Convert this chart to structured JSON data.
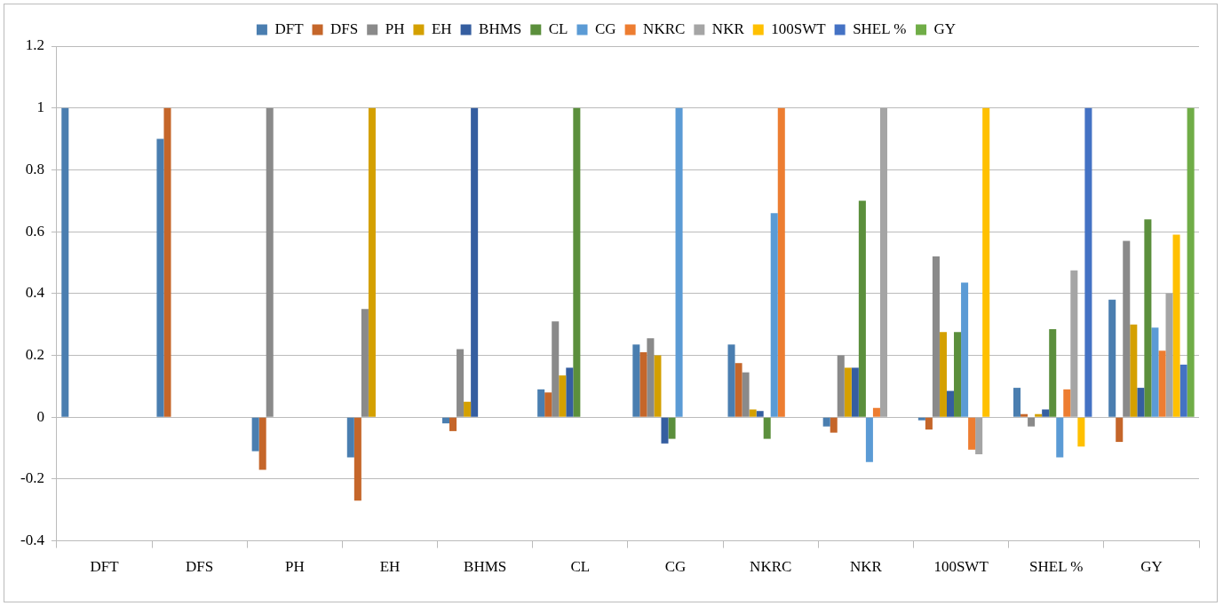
{
  "chart_data": {
    "type": "bar",
    "categories": [
      "DFT",
      "DFS",
      "PH",
      "EH",
      "BHMS",
      "CL",
      "CG",
      "NKRC",
      "NKR",
      "100SWT",
      "SHEL %",
      "GY"
    ],
    "series": [
      {
        "name": "DFT",
        "color": "#4a7eb0",
        "values": [
          1,
          0.9,
          -0.11,
          -0.13,
          -0.02,
          0.09,
          0.235,
          0.235,
          -0.03,
          -0.01,
          0.095,
          0.38
        ]
      },
      {
        "name": "DFS",
        "color": "#c5662a",
        "values": [
          null,
          1,
          -0.17,
          -0.27,
          -0.045,
          0.08,
          0.21,
          0.175,
          -0.05,
          -0.04,
          0.01,
          -0.08
        ]
      },
      {
        "name": "PH",
        "color": "#8a8a8a",
        "values": [
          null,
          null,
          1,
          0.35,
          0.22,
          0.31,
          0.255,
          0.145,
          0.2,
          0.52,
          -0.03,
          0.57
        ]
      },
      {
        "name": "EH",
        "color": "#d4a000",
        "values": [
          null,
          null,
          null,
          1,
          0.05,
          0.135,
          0.2,
          0.025,
          0.16,
          0.275,
          0.01,
          0.3
        ]
      },
      {
        "name": "BHMS",
        "color": "#355ea0",
        "values": [
          null,
          null,
          null,
          null,
          1,
          0.16,
          -0.085,
          0.02,
          0.16,
          0.085,
          0.025,
          0.095
        ]
      },
      {
        "name": "CL",
        "color": "#5b8f3c",
        "values": [
          null,
          null,
          null,
          null,
          null,
          1,
          -0.07,
          -0.07,
          0.7,
          0.275,
          0.285,
          0.64
        ]
      },
      {
        "name": "CG",
        "color": "#5b9bd5",
        "values": [
          null,
          null,
          null,
          null,
          null,
          null,
          1,
          0.66,
          -0.145,
          0.435,
          -0.13,
          0.29
        ]
      },
      {
        "name": "NKRC",
        "color": "#ed7d31",
        "values": [
          null,
          null,
          null,
          null,
          null,
          null,
          null,
          1,
          0.03,
          -0.105,
          0.09,
          0.215
        ]
      },
      {
        "name": "NKR",
        "color": "#a5a5a5",
        "values": [
          null,
          null,
          null,
          null,
          null,
          null,
          null,
          null,
          1,
          -0.12,
          0.475,
          0.4
        ]
      },
      {
        "name": "100SWT",
        "color": "#ffc000",
        "values": [
          null,
          null,
          null,
          null,
          null,
          null,
          null,
          null,
          null,
          1,
          -0.095,
          0.59
        ]
      },
      {
        "name": "SHEL %",
        "color": "#4472c4",
        "values": [
          null,
          null,
          null,
          null,
          null,
          null,
          null,
          null,
          null,
          null,
          1,
          0.17
        ]
      },
      {
        "name": "GY",
        "color": "#70ad47",
        "values": [
          null,
          null,
          null,
          null,
          null,
          null,
          null,
          null,
          null,
          null,
          null,
          1
        ]
      }
    ],
    "ylim": [
      -0.4,
      1.2
    ],
    "yticks": [
      -0.4,
      -0.2,
      0,
      0.2,
      0.4,
      0.6,
      0.8,
      1,
      1.2
    ],
    "grid": "y",
    "legend": "top"
  }
}
